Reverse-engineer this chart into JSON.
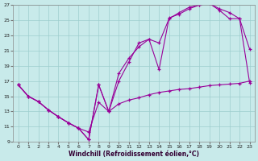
{
  "xlabel": "Windchill (Refroidissement éolien,°C)",
  "bg_color": "#c8eaea",
  "line_color": "#990099",
  "xlim": [
    -0.5,
    23.5
  ],
  "ylim": [
    9,
    27
  ],
  "yticks": [
    9,
    11,
    13,
    15,
    17,
    19,
    21,
    23,
    25,
    27
  ],
  "xticks": [
    0,
    1,
    2,
    3,
    4,
    5,
    6,
    7,
    8,
    9,
    10,
    11,
    12,
    13,
    14,
    15,
    16,
    17,
    18,
    19,
    20,
    21,
    22,
    23
  ],
  "line1_x": [
    0,
    1,
    2,
    3,
    4,
    5,
    6,
    7,
    8,
    9,
    10,
    11,
    12,
    13,
    14,
    15,
    16,
    17,
    18,
    19,
    20,
    21,
    22,
    23
  ],
  "line1_y": [
    16.5,
    15.0,
    14.3,
    13.2,
    12.3,
    11.5,
    10.8,
    10.3,
    14.2,
    13.0,
    14.0,
    14.5,
    14.8,
    15.2,
    15.5,
    15.7,
    15.9,
    16.0,
    16.2,
    16.4,
    16.5,
    16.6,
    16.7,
    17.0
  ],
  "line2_x": [
    0,
    1,
    2,
    3,
    4,
    5,
    6,
    7,
    8,
    9,
    10,
    11,
    12,
    13,
    14,
    15,
    16,
    17,
    18,
    19,
    20,
    21,
    22,
    23
  ],
  "line2_y": [
    16.5,
    15.0,
    14.3,
    13.2,
    12.3,
    11.5,
    10.8,
    9.3,
    16.5,
    13.0,
    18.0,
    20.0,
    21.5,
    22.5,
    18.5,
    25.3,
    25.8,
    26.5,
    27.0,
    27.2,
    26.3,
    25.2,
    25.2,
    21.2
  ],
  "line3_x": [
    0,
    1,
    2,
    3,
    4,
    5,
    6,
    7,
    8,
    9,
    10,
    11,
    12,
    13,
    14,
    15,
    16,
    17,
    18,
    19,
    20,
    21,
    22,
    23
  ],
  "line3_y": [
    16.5,
    15.0,
    14.3,
    13.2,
    12.3,
    11.5,
    10.8,
    9.3,
    16.5,
    13.0,
    17.0,
    19.5,
    22.0,
    22.5,
    22.0,
    25.2,
    26.0,
    26.7,
    27.0,
    27.2,
    26.5,
    26.0,
    25.2,
    16.8
  ]
}
